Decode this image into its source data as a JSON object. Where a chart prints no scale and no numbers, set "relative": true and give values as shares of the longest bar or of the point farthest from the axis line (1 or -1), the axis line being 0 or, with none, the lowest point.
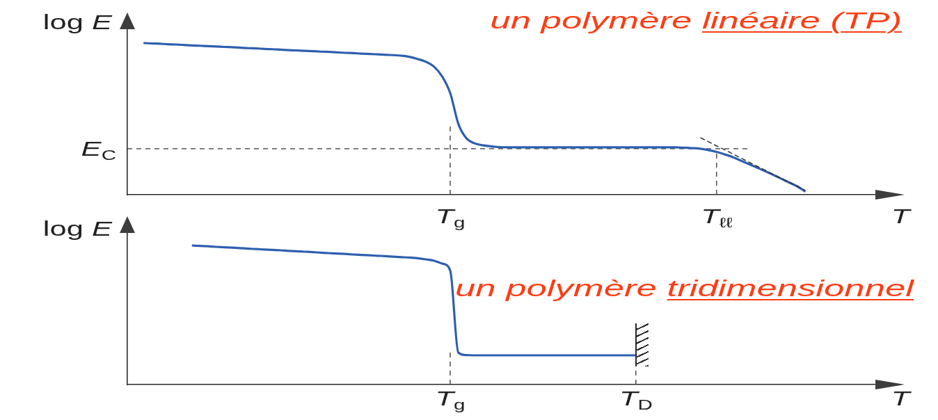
{
  "chart_data": [
    {
      "type": "line",
      "title": "un polymère linéaire (TP)",
      "ylabel": "log E",
      "xlabel": "T",
      "relative": true,
      "grid": false,
      "legend": false,
      "marker": "none",
      "tick_labels": "x",
      "categories": [
        null,
        null,
        null,
        null,
        null,
        null,
        null,
        null,
        null,
        null,
        null,
        null,
        null,
        null,
        null,
        null,
        null,
        null,
        null,
        null,
        null,
        null,
        null,
        null,
        null,
        null,
        null,
        null,
        null,
        null,
        null,
        null,
        null,
        null,
        null,
        null,
        null,
        null,
        null,
        null,
        "T$_{g}$",
        null,
        null,
        null,
        null,
        null,
        null,
        null,
        null,
        null,
        null,
        null,
        null,
        null,
        null,
        null,
        null,
        null,
        null,
        null,
        null,
        null,
        null,
        null,
        null,
        null,
        null,
        null,
        null,
        null,
        null,
        null,
        null,
        "T$_{ℓℓ}$",
        null,
        null,
        null,
        null,
        null,
        null,
        null,
        null,
        null,
        null,
        null,
        null,
        null,
        null,
        null,
        null,
        null,
        null,
        null,
        null,
        null,
        null
      ],
      "series": [
        {
          "color": "#2e5fae",
          "values": [
            null,
            null,
            1,
            0.997,
            0.995,
            0.992,
            0.99,
            0.987,
            0.984,
            0.982,
            0.979,
            0.977,
            0.974,
            0.972,
            0.969,
            0.966,
            0.964,
            0.961,
            0.959,
            0.956,
            0.953,
            0.951,
            0.948,
            0.946,
            0.943,
            0.941,
            0.938,
            0.935,
            0.933,
            0.93,
            0.928,
            0.925,
            0.922,
            0.92,
            0.916,
            0.908,
            0.894,
            0.876,
            0.844,
            0.78,
            0.67,
            0.468,
            0.372,
            0.339,
            0.326,
            0.319,
            0.314,
            0.312,
            0.312,
            0.312,
            0.312,
            0.312,
            0.312,
            0.312,
            0.312,
            0.312,
            0.312,
            0.312,
            0.312,
            0.312,
            0.312,
            0.312,
            0.312,
            0.312,
            0.312,
            0.312,
            0.312,
            0.312,
            0.312,
            0.31,
            0.307,
            0.303,
            0.294,
            0.282,
            0.266,
            0.248,
            0.225,
            0.202,
            0.179,
            0.156,
            0.131,
            0.106,
            0.08,
            0.055,
            0.02,
            null,
            null,
            null,
            null,
            null,
            null,
            null,
            null,
            null,
            null,
            null
          ]
        },
        {
          "color": "#333333",
          "line_style": "dashed",
          "values": [
            null,
            null,
            null,
            null,
            null,
            null,
            null,
            null,
            null,
            null,
            null,
            null,
            null,
            null,
            null,
            null,
            null,
            null,
            null,
            null,
            null,
            null,
            null,
            null,
            null,
            null,
            null,
            null,
            null,
            null,
            null,
            null,
            null,
            null,
            null,
            null,
            null,
            null,
            null,
            null,
            null,
            null,
            null,
            null,
            null,
            null,
            null,
            null,
            null,
            null,
            null,
            null,
            null,
            null,
            null,
            null,
            null,
            null,
            null,
            null,
            null,
            null,
            null,
            null,
            null,
            null,
            null,
            null,
            null,
            null,
            null,
            0.376,
            0.349,
            0.322,
            0.296,
            0.269,
            0.242,
            0.215,
            0.188,
            0.162,
            0.135,
            0.108,
            0.081,
            0.055,
            0.028,
            null,
            null,
            null,
            null,
            null,
            null,
            null,
            null,
            null,
            null,
            null
          ]
        }
      ],
      "ref_lines": [
        {
          "axis": "x",
          "value": "T$_{g}$",
          "color": "#333333",
          "line_style": "dashed"
        },
        {
          "axis": "x",
          "value": "T$_{ℓℓ}$",
          "color": "#333333",
          "line_style": "dashed"
        },
        {
          "axis": "y",
          "value": 0.303,
          "label": "E$_{C}$",
          "color": "#333333",
          "line_style": "dashed"
        }
      ]
    },
    {
      "type": "line",
      "title": "un polymère tridimensionnel",
      "ylabel": "log E",
      "xlabel": "T",
      "relative": true,
      "grid": false,
      "legend": false,
      "marker": "none",
      "tick_labels": "x",
      "categories": [
        null,
        null,
        null,
        null,
        null,
        null,
        null,
        null,
        null,
        null,
        null,
        null,
        null,
        null,
        null,
        null,
        null,
        null,
        null,
        null,
        null,
        null,
        null,
        null,
        null,
        null,
        null,
        null,
        null,
        null,
        null,
        null,
        null,
        null,
        null,
        null,
        null,
        null,
        null,
        null,
        "T$_{g}$",
        null,
        null,
        null,
        null,
        null,
        null,
        null,
        null,
        null,
        null,
        null,
        null,
        null,
        null,
        null,
        null,
        null,
        null,
        null,
        null,
        null,
        null,
        "T$_{D}$",
        null,
        null,
        null,
        null,
        null,
        null,
        null,
        null,
        null,
        null,
        null,
        null,
        null,
        null,
        null,
        null,
        null,
        null,
        null,
        null,
        null,
        null,
        null,
        null,
        null,
        null,
        null,
        null,
        null,
        null,
        null,
        null
      ],
      "series": [
        {
          "color": "#2e5fae",
          "values": [
            null,
            null,
            null,
            null,
            null,
            null,
            null,
            null,
            1,
            0.997,
            0.994,
            0.99,
            0.987,
            0.984,
            0.981,
            0.977,
            0.974,
            0.971,
            0.968,
            0.965,
            0.961,
            0.958,
            0.955,
            0.952,
            0.948,
            0.945,
            0.942,
            0.939,
            0.935,
            0.932,
            0.929,
            0.926,
            0.923,
            0.919,
            0.916,
            0.913,
            0.908,
            0.9,
            0.89,
            0.87,
            0.82,
            0.23,
            0.212,
            0.21,
            0.21,
            0.21,
            0.21,
            0.21,
            0.21,
            0.21,
            0.21,
            0.21,
            0.21,
            0.21,
            0.21,
            0.21,
            0.21,
            0.21,
            0.21,
            0.21,
            0.21,
            0.21,
            0.21,
            0.21,
            null,
            null,
            null,
            null,
            null,
            null,
            null,
            null,
            null,
            null,
            null,
            null,
            null,
            null,
            null,
            null,
            null,
            null,
            null,
            null,
            null,
            null,
            null,
            null,
            null,
            null,
            null,
            null,
            null,
            null,
            null,
            null
          ]
        }
      ],
      "ref_lines": [
        {
          "axis": "x",
          "value": "T$_{g}$",
          "color": "#333333",
          "line_style": "dashed"
        },
        {
          "axis": "x",
          "value": "T$_{D}$",
          "color": "#333333",
          "line_style": "dashed"
        }
      ]
    }
  ]
}
